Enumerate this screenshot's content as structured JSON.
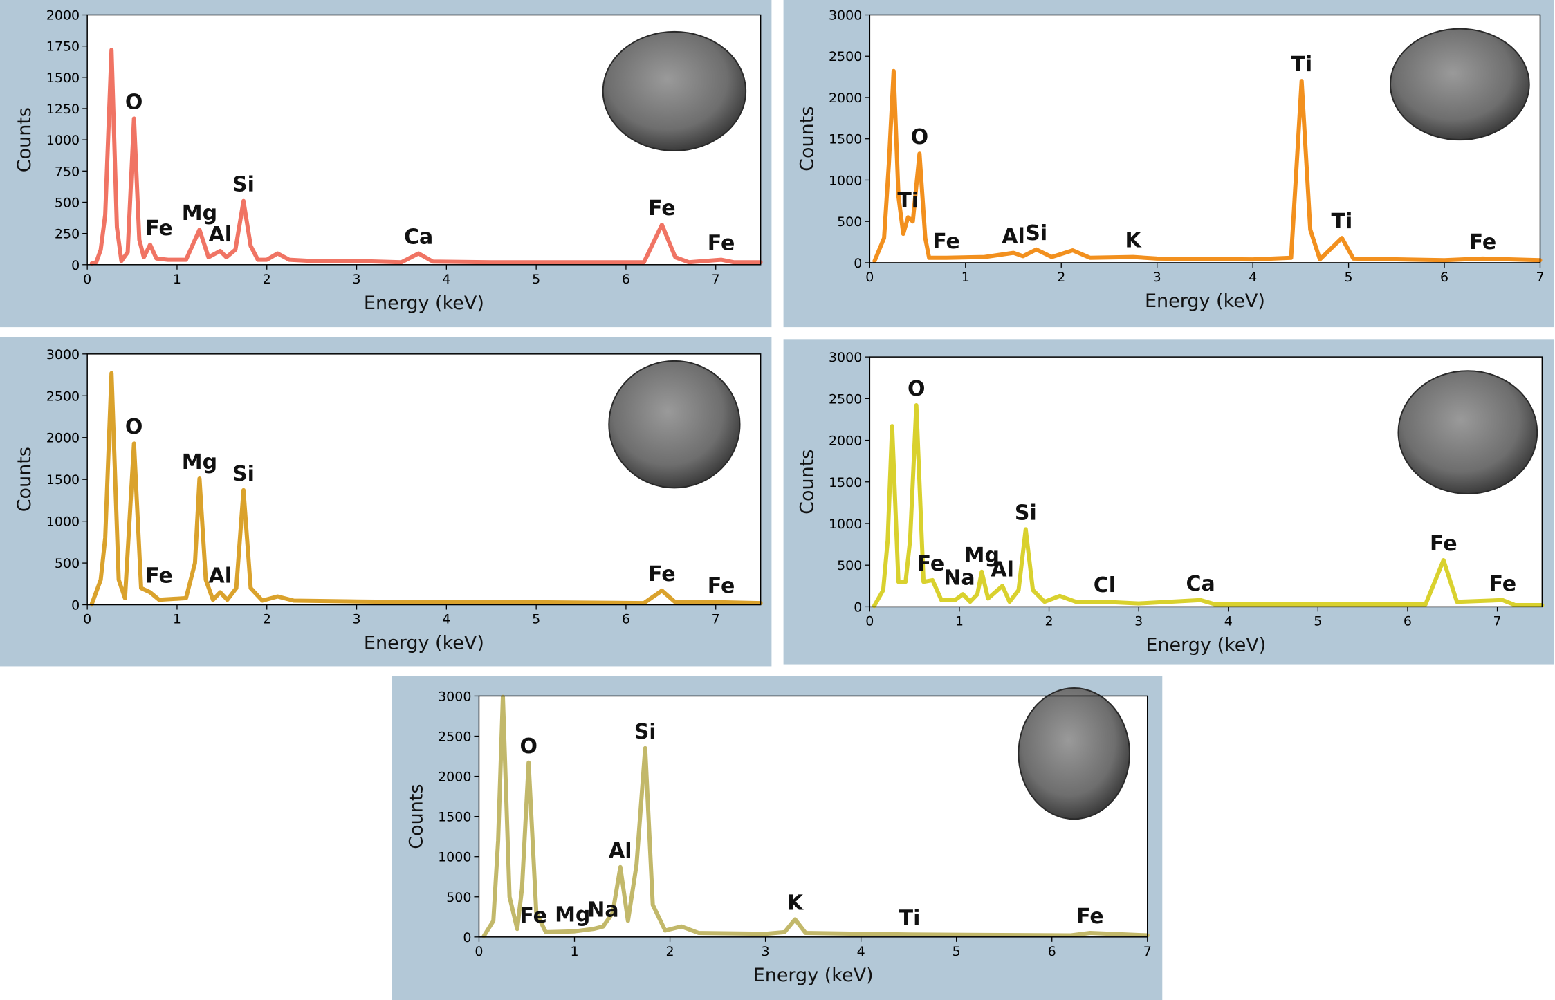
{
  "chart_data": [
    {
      "type": "line",
      "xlabel": "Energy (keV)",
      "ylabel": "Counts",
      "color": "#f07464",
      "xlim": [
        0,
        7.5
      ],
      "xticks": [
        0,
        1,
        2,
        3,
        4,
        5,
        6,
        7
      ],
      "ylim": [
        0,
        2000
      ],
      "yticks": [
        0,
        250,
        500,
        750,
        1000,
        1250,
        1500,
        1750,
        2000
      ],
      "x": [
        0.05,
        0.1,
        0.15,
        0.2,
        0.27,
        0.33,
        0.38,
        0.45,
        0.52,
        0.58,
        0.63,
        0.7,
        0.77,
        0.9,
        1.1,
        1.25,
        1.35,
        1.48,
        1.55,
        1.65,
        1.74,
        1.82,
        1.9,
        2.0,
        2.12,
        2.25,
        2.5,
        3.0,
        3.5,
        3.69,
        3.85,
        4.5,
        5.5,
        6.2,
        6.4,
        6.55,
        6.7,
        7.06,
        7.2,
        7.5
      ],
      "values": [
        10,
        20,
        120,
        400,
        1720,
        300,
        30,
        100,
        1170,
        200,
        60,
        160,
        50,
        40,
        40,
        280,
        60,
        110,
        60,
        120,
        510,
        150,
        40,
        40,
        90,
        40,
        30,
        30,
        20,
        90,
        25,
        20,
        20,
        20,
        320,
        60,
        20,
        40,
        20,
        20
      ],
      "annotations": [
        {
          "text": "O",
          "x": 0.52,
          "y": 1170
        },
        {
          "text": "Fe",
          "x": 0.8,
          "y": 160
        },
        {
          "text": "Mg",
          "x": 1.25,
          "y": 280
        },
        {
          "text": "Al",
          "x": 1.48,
          "y": 110
        },
        {
          "text": "Si",
          "x": 1.74,
          "y": 510
        },
        {
          "text": "Ca",
          "x": 3.69,
          "y": 90
        },
        {
          "text": "Fe",
          "x": 6.4,
          "y": 320
        },
        {
          "text": "Fe",
          "x": 7.06,
          "y": 40
        }
      ]
    },
    {
      "type": "line",
      "xlabel": "Energy (keV)",
      "ylabel": "Counts",
      "color": "#f2901e",
      "xlim": [
        0,
        7
      ],
      "xticks": [
        0,
        1,
        2,
        3,
        4,
        5,
        6,
        7
      ],
      "ylim": [
        0,
        3000
      ],
      "yticks": [
        0,
        500,
        1000,
        1500,
        2000,
        2500,
        3000
      ],
      "x": [
        0.05,
        0.15,
        0.2,
        0.25,
        0.3,
        0.35,
        0.4,
        0.45,
        0.52,
        0.58,
        0.62,
        0.8,
        1.2,
        1.5,
        1.6,
        1.74,
        1.9,
        2.12,
        2.3,
        2.75,
        3.0,
        4.0,
        4.4,
        4.51,
        4.6,
        4.7,
        4.93,
        5.05,
        6.0,
        6.4,
        7.0
      ],
      "values": [
        20,
        300,
        1200,
        2320,
        800,
        350,
        550,
        500,
        1320,
        300,
        60,
        60,
        70,
        120,
        80,
        160,
        70,
        150,
        60,
        70,
        50,
        40,
        60,
        2200,
        400,
        40,
        300,
        50,
        30,
        50,
        30
      ],
      "annotations": [
        {
          "text": "Ti",
          "x": 0.4,
          "y": 550
        },
        {
          "text": "O",
          "x": 0.52,
          "y": 1320
        },
        {
          "text": "Fe",
          "x": 0.8,
          "y": 60
        },
        {
          "text": "Al",
          "x": 1.5,
          "y": 120
        },
        {
          "text": "Si",
          "x": 1.74,
          "y": 160
        },
        {
          "text": "K",
          "x": 2.75,
          "y": 70
        },
        {
          "text": "Ti",
          "x": 4.51,
          "y": 2200
        },
        {
          "text": "Ti",
          "x": 4.93,
          "y": 300
        },
        {
          "text": "Fe",
          "x": 6.4,
          "y": 50
        }
      ]
    },
    {
      "type": "line",
      "xlabel": "Energy (keV)",
      "ylabel": "Counts",
      "color": "#daa22c",
      "xlim": [
        0,
        7.5
      ],
      "xticks": [
        0,
        1,
        2,
        3,
        4,
        5,
        6,
        7
      ],
      "ylim": [
        0,
        3000
      ],
      "yticks": [
        0,
        500,
        1000,
        1500,
        2000,
        2500,
        3000
      ],
      "x": [
        0.05,
        0.15,
        0.2,
        0.27,
        0.35,
        0.42,
        0.52,
        0.6,
        0.7,
        0.8,
        1.1,
        1.2,
        1.25,
        1.32,
        1.4,
        1.48,
        1.56,
        1.66,
        1.74,
        1.82,
        1.95,
        2.12,
        2.3,
        3.0,
        4.0,
        5.0,
        6.2,
        6.4,
        6.55,
        7.06,
        7.5
      ],
      "values": [
        10,
        300,
        800,
        2770,
        300,
        80,
        1930,
        200,
        150,
        60,
        80,
        500,
        1510,
        300,
        60,
        150,
        60,
        200,
        1370,
        200,
        50,
        100,
        50,
        40,
        30,
        30,
        20,
        170,
        30,
        30,
        20
      ],
      "annotations": [
        {
          "text": "O",
          "x": 0.52,
          "y": 1930
        },
        {
          "text": "Fe",
          "x": 0.8,
          "y": 150
        },
        {
          "text": "Mg",
          "x": 1.25,
          "y": 1510
        },
        {
          "text": "Al",
          "x": 1.48,
          "y": 150
        },
        {
          "text": "Si",
          "x": 1.74,
          "y": 1370
        },
        {
          "text": "Fe",
          "x": 6.4,
          "y": 170
        },
        {
          "text": "Fe",
          "x": 7.06,
          "y": 30
        }
      ]
    },
    {
      "type": "line",
      "xlabel": "Energy (keV)",
      "ylabel": "Counts",
      "color": "#d9d12e",
      "xlim": [
        0,
        7.5
      ],
      "xticks": [
        0,
        1,
        2,
        3,
        4,
        5,
        6,
        7
      ],
      "ylim": [
        0,
        3000
      ],
      "yticks": [
        0,
        500,
        1000,
        1500,
        2000,
        2500,
        3000
      ],
      "x": [
        0.05,
        0.15,
        0.2,
        0.25,
        0.32,
        0.4,
        0.45,
        0.52,
        0.6,
        0.7,
        0.8,
        0.95,
        1.04,
        1.12,
        1.2,
        1.25,
        1.32,
        1.48,
        1.56,
        1.66,
        1.74,
        1.82,
        1.95,
        2.12,
        2.3,
        2.62,
        3.0,
        3.69,
        3.85,
        5.0,
        6.2,
        6.4,
        6.55,
        7.06,
        7.2,
        7.5
      ],
      "values": [
        10,
        200,
        800,
        2170,
        300,
        300,
        800,
        2420,
        300,
        320,
        80,
        80,
        150,
        60,
        150,
        420,
        100,
        250,
        60,
        200,
        930,
        200,
        60,
        130,
        60,
        60,
        40,
        80,
        30,
        30,
        30,
        560,
        60,
        80,
        20,
        20
      ],
      "annotations": [
        {
          "text": "O",
          "x": 0.52,
          "y": 2420
        },
        {
          "text": "Fe",
          "x": 0.68,
          "y": 320
        },
        {
          "text": "Na",
          "x": 1.0,
          "y": 150
        },
        {
          "text": "Mg",
          "x": 1.25,
          "y": 420
        },
        {
          "text": "Al",
          "x": 1.48,
          "y": 250
        },
        {
          "text": "Si",
          "x": 1.74,
          "y": 930
        },
        {
          "text": "Cl",
          "x": 2.62,
          "y": 60
        },
        {
          "text": "Ca",
          "x": 3.69,
          "y": 80
        },
        {
          "text": "Fe",
          "x": 6.4,
          "y": 560
        },
        {
          "text": "Fe",
          "x": 7.06,
          "y": 80
        }
      ]
    },
    {
      "type": "line",
      "xlabel": "Energy (keV)",
      "ylabel": "Counts",
      "color": "#c2b86a",
      "xlim": [
        0,
        7
      ],
      "xticks": [
        0,
        1,
        2,
        3,
        4,
        5,
        6,
        7
      ],
      "ylim": [
        0,
        3000
      ],
      "yticks": [
        0,
        500,
        1000,
        1500,
        2000,
        2500,
        3000
      ],
      "x": [
        0.05,
        0.15,
        0.2,
        0.25,
        0.32,
        0.4,
        0.45,
        0.52,
        0.6,
        0.7,
        1.0,
        1.2,
        1.3,
        1.4,
        1.48,
        1.56,
        1.65,
        1.74,
        1.82,
        1.95,
        2.12,
        2.3,
        3.0,
        3.2,
        3.31,
        3.42,
        4.0,
        4.51,
        6.2,
        6.4,
        7.0
      ],
      "values": [
        10,
        200,
        1200,
        2990,
        500,
        100,
        600,
        2170,
        300,
        60,
        70,
        100,
        130,
        300,
        870,
        200,
        900,
        2350,
        400,
        80,
        130,
        50,
        40,
        60,
        220,
        50,
        40,
        30,
        20,
        50,
        20
      ],
      "annotations": [
        {
          "text": "O",
          "x": 0.52,
          "y": 2170
        },
        {
          "text": "Fe",
          "x": 0.57,
          "y": 60
        },
        {
          "text": "Mg",
          "x": 0.98,
          "y": 70
        },
        {
          "text": "Na",
          "x": 1.3,
          "y": 130
        },
        {
          "text": "Al",
          "x": 1.48,
          "y": 870
        },
        {
          "text": "Si",
          "x": 1.74,
          "y": 2350
        },
        {
          "text": "K",
          "x": 3.31,
          "y": 220
        },
        {
          "text": "Ti",
          "x": 4.51,
          "y": 30
        },
        {
          "text": "Fe",
          "x": 6.4,
          "y": 50
        }
      ]
    }
  ]
}
